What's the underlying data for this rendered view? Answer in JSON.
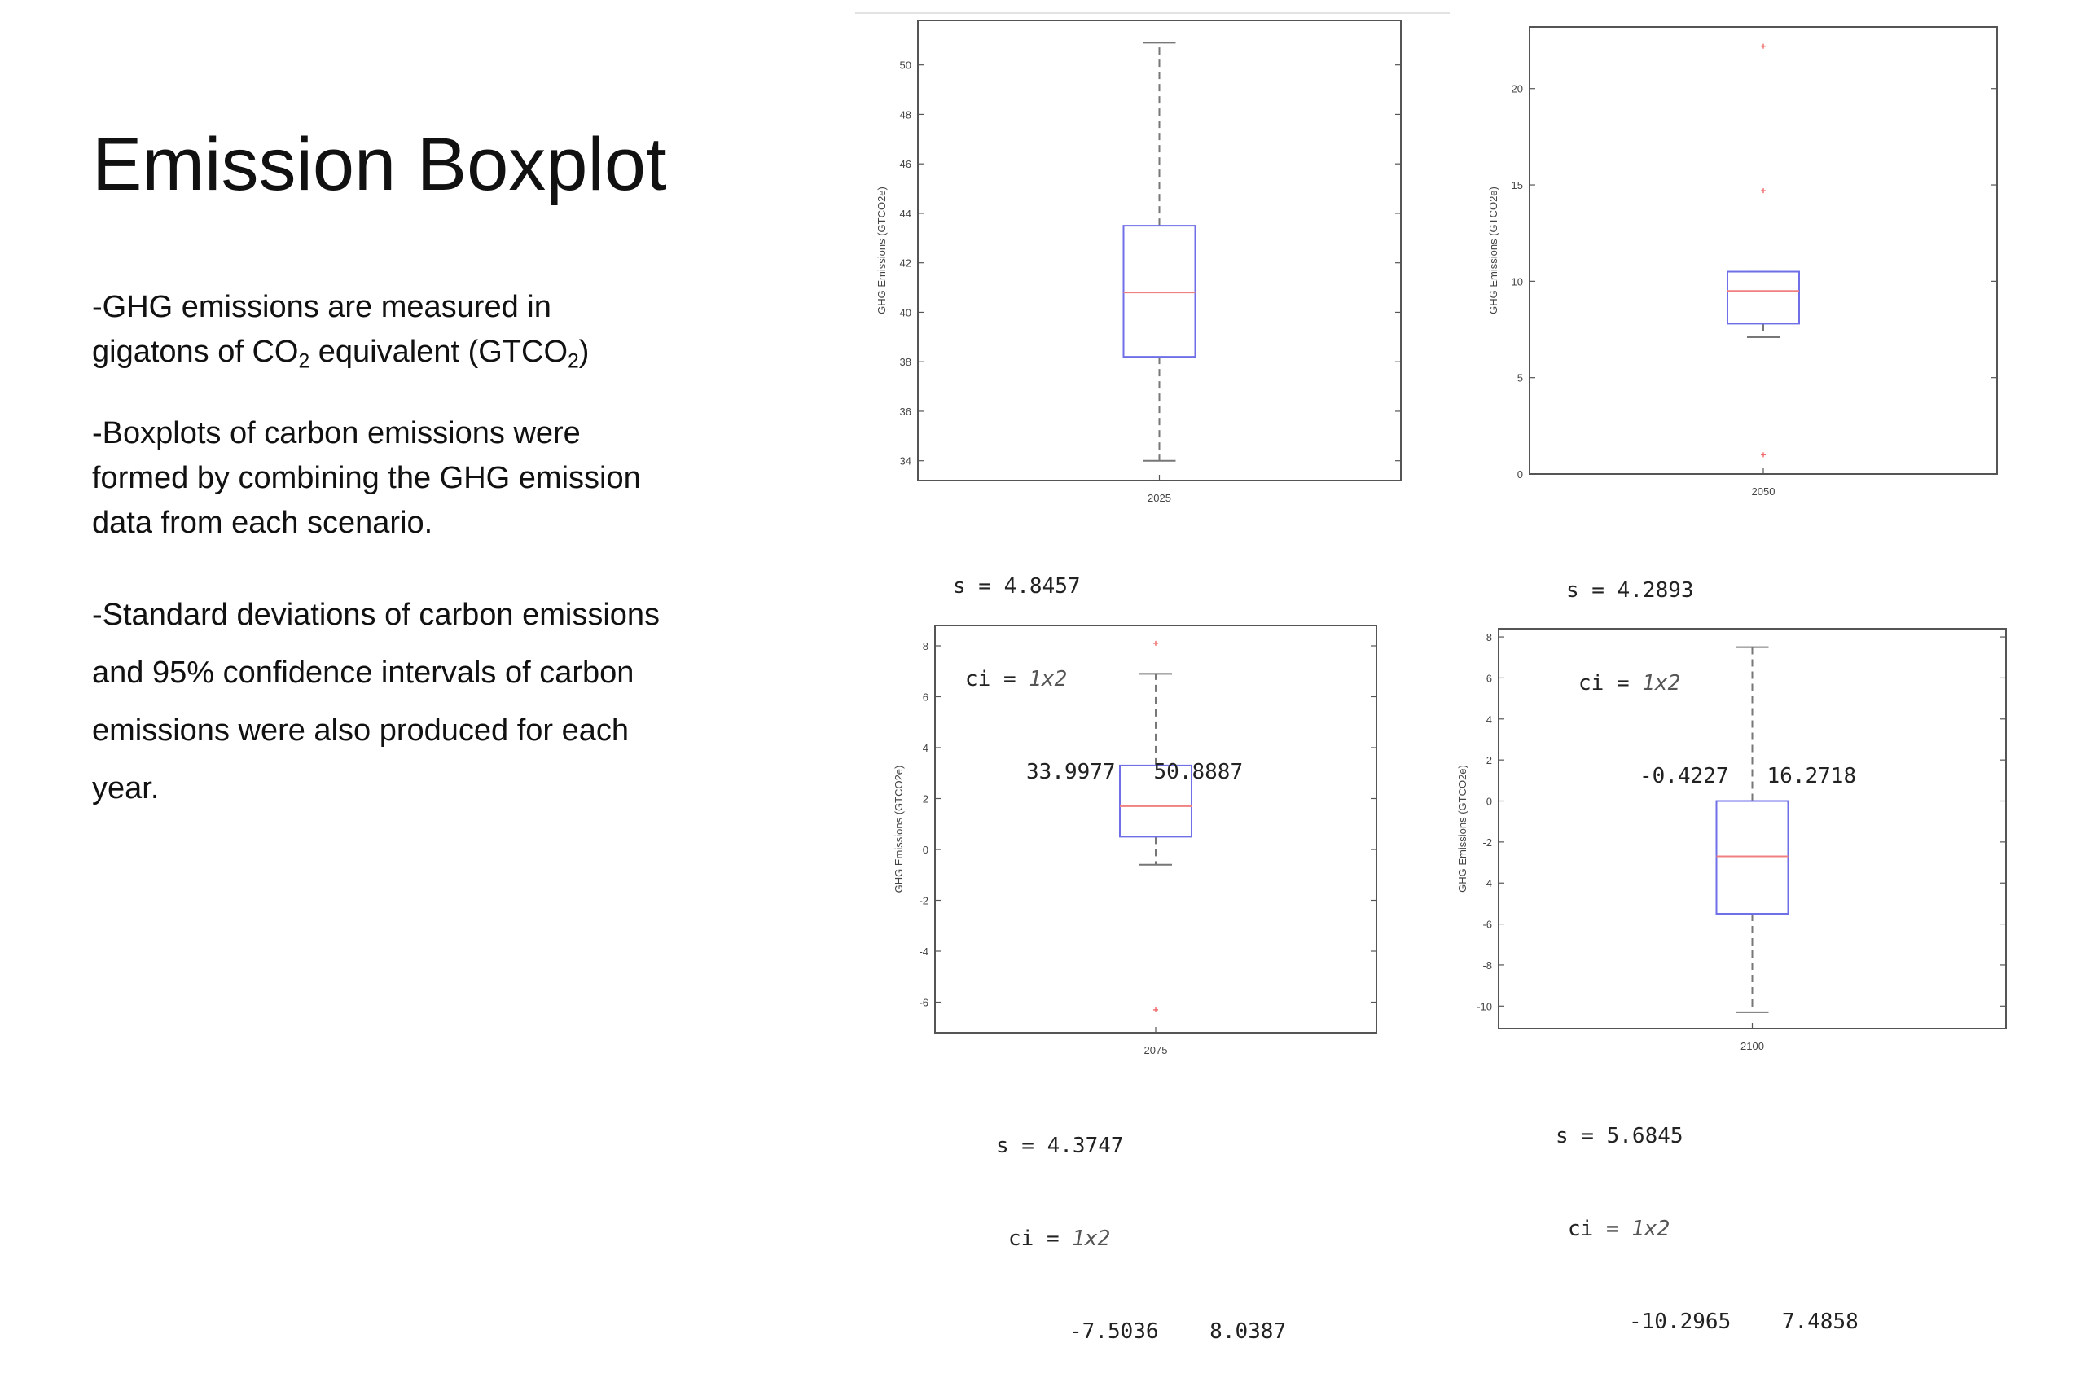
{
  "slide": {
    "title": "Emission Boxplot",
    "p1": {
      "line1": "-GHG emissions are measured in",
      "line2_a": "gigatons of CO",
      "sub_2": "2",
      "line2_b": " equivalent (GTCO",
      "line2_c": ")"
    },
    "p2": {
      "line1": "-Boxplots of carbon emissions were",
      "line2": "formed by combining the GHG emission",
      "line3": "data from each scenario."
    },
    "p3": {
      "line1": "-Standard deviations of carbon emissions",
      "line2": "and 95% confidence intervals of carbon",
      "line3": "emissions were also produced for each",
      "line4": "year."
    }
  },
  "colors": {
    "box": "#6f6fe8",
    "median": "#f08080",
    "whisker": "#777777",
    "outlier": "#f07070",
    "frame": "#555555"
  },
  "chart_data": [
    {
      "type": "boxplot",
      "category": "2025",
      "ylabel": "GHG Emissions (GTCO2e)",
      "ylim": [
        33.2,
        51.8
      ],
      "yticks": [
        34,
        36,
        38,
        40,
        42,
        44,
        46,
        48,
        50
      ],
      "whisker_low": 34.0,
      "q1": 38.2,
      "median": 40.8,
      "q3": 43.5,
      "whisker_high": 50.9,
      "outliers": [],
      "stats": {
        "s_label": "s = 4.8457",
        "ci_label": "ci = ",
        "ci_dim": "1x2",
        "ci_values": "33.9977   50.8887"
      }
    },
    {
      "type": "boxplot",
      "category": "2050",
      "ylabel": "GHG Emissions (GTCO2e)",
      "ylim": [
        0,
        23.2
      ],
      "yticks": [
        0,
        5,
        10,
        15,
        20
      ],
      "whisker_low": 7.1,
      "q1": 7.8,
      "median": 9.5,
      "q3": 10.5,
      "whisker_high": 10.5,
      "outliers": [
        1.0,
        14.7,
        22.2
      ],
      "stats": {
        "s_label": "s = 4.2893",
        "ci_label": "ci = ",
        "ci_dim": "1x2",
        "ci_values": "-0.4227   16.2718"
      }
    },
    {
      "type": "boxplot",
      "category": "2075",
      "ylabel": "GHG Emissions (GTCO2e)",
      "ylim": [
        -7.2,
        8.8
      ],
      "yticks": [
        -6,
        -4,
        -2,
        0,
        2,
        4,
        6,
        8
      ],
      "whisker_low": -0.6,
      "q1": 0.5,
      "median": 1.7,
      "q3": 3.3,
      "whisker_high": 6.9,
      "outliers": [
        8.1,
        -6.3
      ],
      "stats": {
        "s_label": "s = 4.3747",
        "ci_label": "ci = ",
        "ci_dim": "1x2",
        "ci_values": "-7.5036    8.0387"
      }
    },
    {
      "type": "boxplot",
      "category": "2100",
      "ylabel": "GHG Emissions (GTCO2e)",
      "ylim": [
        -11.1,
        8.4
      ],
      "yticks": [
        -10,
        -8,
        -6,
        -4,
        -2,
        0,
        2,
        4,
        6,
        8
      ],
      "whisker_low": -10.3,
      "q1": -5.5,
      "median": -2.7,
      "q3": 0.0,
      "whisker_high": 7.5,
      "outliers": [],
      "stats": {
        "s_label": "s = 5.6845",
        "ci_label": "ci = ",
        "ci_dim": "1x2",
        "ci_values": "-10.2965    7.4858"
      }
    }
  ]
}
